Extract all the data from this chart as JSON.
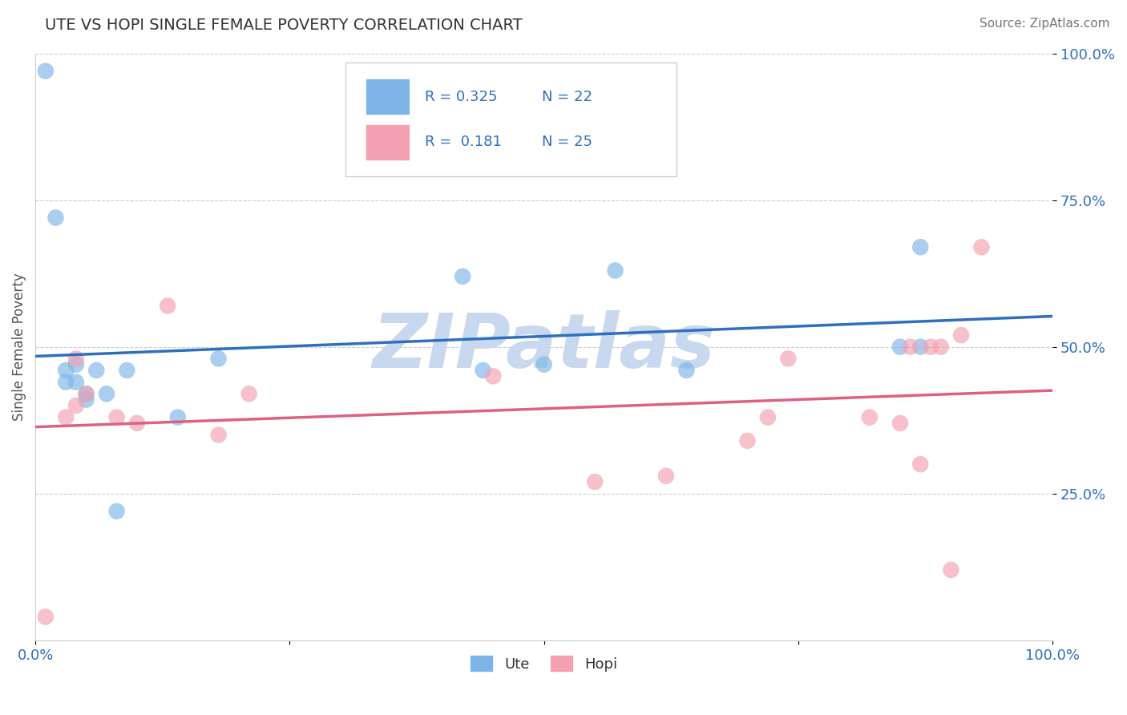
{
  "title": "UTE VS HOPI SINGLE FEMALE POVERTY CORRELATION CHART",
  "source_text": "Source: ZipAtlas.com",
  "ylabel": "Single Female Poverty",
  "xlim": [
    0,
    1
  ],
  "ylim": [
    0,
    1
  ],
  "x_ticks": [
    0.0,
    0.25,
    0.5,
    0.75,
    1.0
  ],
  "x_tick_labels": [
    "0.0%",
    "",
    "",
    "",
    "100.0%"
  ],
  "y_ticks": [
    0.25,
    0.5,
    0.75,
    1.0
  ],
  "y_tick_labels": [
    "25.0%",
    "50.0%",
    "75.0%",
    "100.0%"
  ],
  "ute_color": "#7EB5E8",
  "hopi_color": "#F4A0B0",
  "ute_line_color": "#2E6FBF",
  "hopi_line_color": "#E06080",
  "ute_R": 0.325,
  "ute_N": 22,
  "hopi_R": 0.181,
  "hopi_N": 25,
  "legend_color": "#2E6FBF",
  "background_color": "#ffffff",
  "watermark": "ZIPatlas",
  "watermark_color": "#c8d8ee",
  "ute_x": [
    0.01,
    0.02,
    0.03,
    0.03,
    0.04,
    0.04,
    0.05,
    0.05,
    0.06,
    0.07,
    0.08,
    0.09,
    0.14,
    0.18,
    0.42,
    0.44,
    0.5,
    0.57,
    0.64,
    0.85,
    0.87,
    0.87
  ],
  "ute_y": [
    0.97,
    0.72,
    0.46,
    0.44,
    0.47,
    0.44,
    0.42,
    0.41,
    0.46,
    0.42,
    0.22,
    0.46,
    0.38,
    0.48,
    0.62,
    0.46,
    0.47,
    0.63,
    0.46,
    0.5,
    0.67,
    0.5
  ],
  "hopi_x": [
    0.01,
    0.03,
    0.04,
    0.04,
    0.05,
    0.08,
    0.1,
    0.13,
    0.18,
    0.21,
    0.45,
    0.55,
    0.62,
    0.7,
    0.72,
    0.74,
    0.82,
    0.85,
    0.86,
    0.87,
    0.88,
    0.89,
    0.9,
    0.91,
    0.93
  ],
  "hopi_y": [
    0.04,
    0.38,
    0.48,
    0.4,
    0.42,
    0.38,
    0.37,
    0.57,
    0.35,
    0.42,
    0.45,
    0.27,
    0.28,
    0.34,
    0.38,
    0.48,
    0.38,
    0.37,
    0.5,
    0.3,
    0.5,
    0.5,
    0.12,
    0.52,
    0.67
  ],
  "grid_color": "#cccccc",
  "spine_color": "#cccccc",
  "tick_color": "#2E6FBF"
}
